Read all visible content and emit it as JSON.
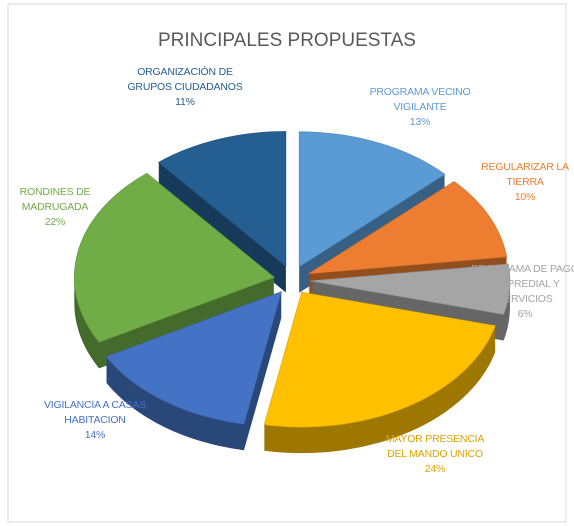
{
  "chart_data": {
    "type": "pie",
    "title": "PRINCIPALES PROPUESTAS",
    "categories": [
      "PROGRAMA VECINO VIGILANTE",
      "REGULARIZAR LA TIERRA",
      "PROGRAMA DE PAGO DE PREDIAL Y SERVICIOS",
      "MAYOR PRESENCIA DEL MANDO UNICO",
      "VIGILANCIA A CASAS HABITACION",
      "RONDINES DE MADRUGADA",
      "ORGANIZACIÓN DE GRUPOS CIUDADANOS"
    ],
    "values": [
      13,
      10,
      6,
      24,
      14,
      22,
      11
    ],
    "value_labels": [
      "13%",
      "10%",
      "6%",
      "24%",
      "14%",
      "22%",
      "11%"
    ],
    "colors": [
      "#5b9bd5",
      "#ed7d31",
      "#a5a5a5",
      "#ffc000",
      "#4472c4",
      "#70ad47",
      "#255e91"
    ]
  }
}
